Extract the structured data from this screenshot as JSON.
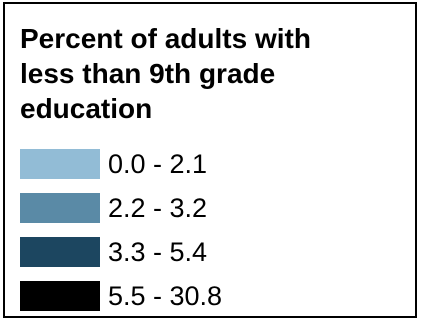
{
  "legend": {
    "title_lines": [
      "Percent of adults with",
      "less than 9th grade",
      "education"
    ],
    "items": [
      {
        "label": "0.0 - 2.1",
        "color": "#92bcd6"
      },
      {
        "label": "2.2 - 3.2",
        "color": "#5a8aa6"
      },
      {
        "label": "3.3 - 5.4",
        "color": "#1c4660"
      },
      {
        "label": "5.5 - 30.8",
        "color": "#000000"
      }
    ]
  }
}
